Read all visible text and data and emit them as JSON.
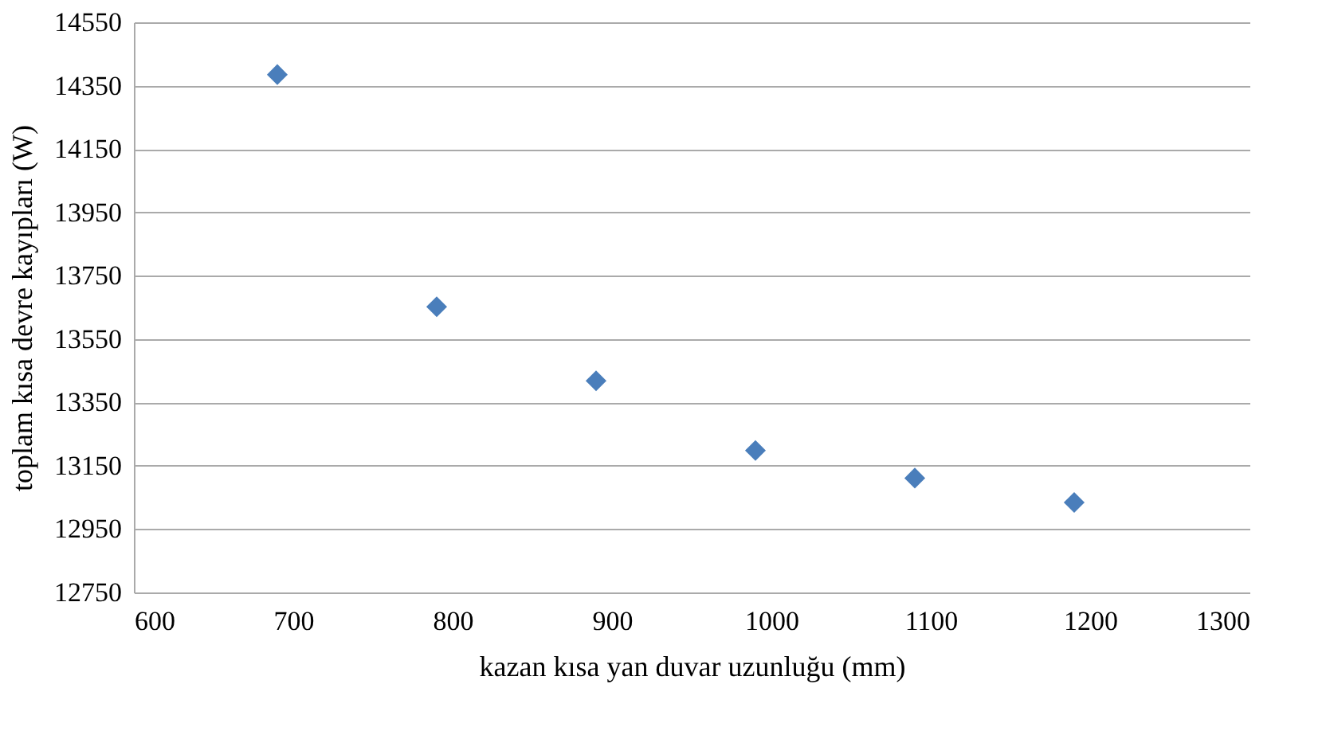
{
  "chart_data": {
    "type": "scatter",
    "xlabel": "kazan kısa yan duvar uzunluğu (mm)",
    "ylabel": "toplam kısa devre kayıpları  (W)",
    "x": [
      690,
      790,
      890,
      990,
      1090,
      1190
    ],
    "series": [
      {
        "color": "#4a7ebb",
        "values": [
          14385,
          13652,
          13418,
          13198,
          13111,
          13034
        ]
      }
    ],
    "xlim": [
      600,
      1300
    ],
    "xticks": [
      600,
      700,
      800,
      900,
      1000,
      1100,
      1200,
      1300
    ],
    "ylim": [
      12750,
      14550
    ],
    "yticks": [
      12750,
      12950,
      13150,
      13350,
      13550,
      13750,
      13950,
      14150,
      14350,
      14550
    ],
    "grid": "y",
    "marker": "diamond",
    "legend": false
  }
}
